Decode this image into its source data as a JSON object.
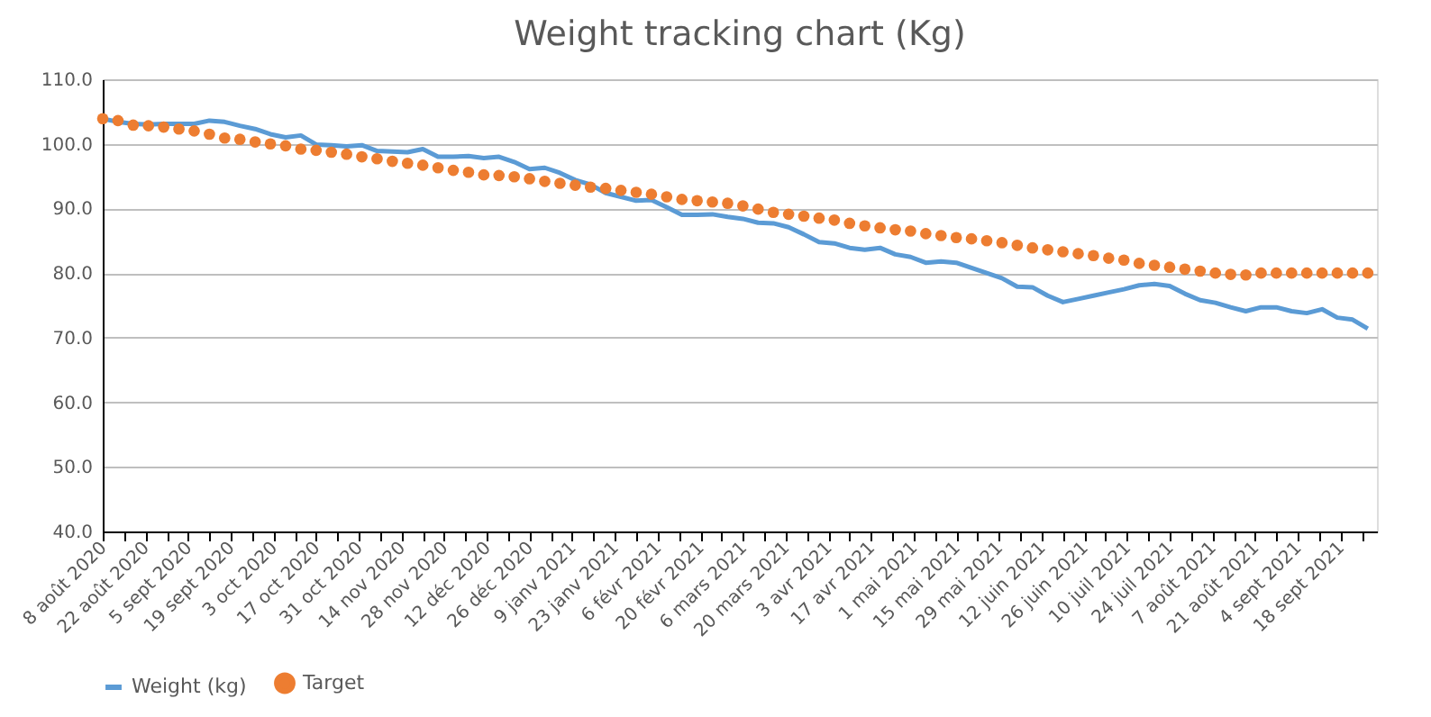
{
  "chart_data": {
    "type": "line",
    "title": "Weight tracking chart (Kg)",
    "x": [
      "2020-08-08",
      "2020-08-13",
      "2020-08-18",
      "2020-08-23",
      "2020-08-28",
      "2020-09-02",
      "2020-09-07",
      "2020-09-12",
      "2020-09-17",
      "2020-09-22",
      "2020-09-27",
      "2020-10-02",
      "2020-10-07",
      "2020-10-12",
      "2020-10-17",
      "2020-10-22",
      "2020-10-27",
      "2020-11-01",
      "2020-11-06",
      "2020-11-11",
      "2020-11-16",
      "2020-11-21",
      "2020-11-26",
      "2020-12-01",
      "2020-12-06",
      "2020-12-11",
      "2020-12-16",
      "2020-12-21",
      "2020-12-26",
      "2020-12-31",
      "2021-01-05",
      "2021-01-10",
      "2021-01-15",
      "2021-01-20",
      "2021-01-25",
      "2021-01-30",
      "2021-02-04",
      "2021-02-09",
      "2021-02-14",
      "2021-02-19",
      "2021-02-24",
      "2021-03-01",
      "2021-03-06",
      "2021-03-11",
      "2021-03-16",
      "2021-03-21",
      "2021-03-26",
      "2021-03-31",
      "2021-04-05",
      "2021-04-10",
      "2021-04-15",
      "2021-04-20",
      "2021-04-25",
      "2021-04-30",
      "2021-05-05",
      "2021-05-10",
      "2021-05-15",
      "2021-05-20",
      "2021-05-25",
      "2021-05-30",
      "2021-06-04",
      "2021-06-09",
      "2021-06-14",
      "2021-06-19",
      "2021-06-24",
      "2021-06-29",
      "2021-07-04",
      "2021-07-09",
      "2021-07-14",
      "2021-07-19",
      "2021-07-24",
      "2021-07-29",
      "2021-08-03",
      "2021-08-08",
      "2021-08-13",
      "2021-08-18",
      "2021-08-23",
      "2021-08-28",
      "2021-09-02",
      "2021-09-07",
      "2021-09-12",
      "2021-09-17",
      "2021-09-22",
      "2021-09-27"
    ],
    "series": [
      {
        "name": "Weight (kg)",
        "type": "line",
        "color": "#5b9bd5",
        "values": [
          103.9,
          103.4,
          103.1,
          103.0,
          103.1,
          103.1,
          103.1,
          103.6,
          103.4,
          102.8,
          102.3,
          101.5,
          101.0,
          101.3,
          99.9,
          99.8,
          99.6,
          99.8,
          98.9,
          98.8,
          98.7,
          99.2,
          98.0,
          98.0,
          98.1,
          97.8,
          98.0,
          97.2,
          96.1,
          96.3,
          95.5,
          94.4,
          93.7,
          92.4,
          91.8,
          91.2,
          91.3,
          90.2,
          89.0,
          89.0,
          89.1,
          88.7,
          88.4,
          87.8,
          87.7,
          87.1,
          86.0,
          84.8,
          84.6,
          83.9,
          83.6,
          83.9,
          82.9,
          82.5,
          81.6,
          81.8,
          81.6,
          80.8,
          80.0,
          79.2,
          77.9,
          77.8,
          76.5,
          75.5,
          76.0,
          76.5,
          77.0,
          77.5,
          78.1,
          78.3,
          78.0,
          76.8,
          75.8,
          75.4,
          74.7,
          74.1,
          74.7,
          74.7,
          74.1,
          73.8,
          74.4,
          73.1,
          72.8,
          71.4
        ]
      },
      {
        "name": "Target",
        "type": "scatter",
        "marker": "circle",
        "color": "#ed7d31",
        "values": [
          103.9,
          103.6,
          102.9,
          102.8,
          102.6,
          102.3,
          102.0,
          101.5,
          100.9,
          100.7,
          100.3,
          100.0,
          99.7,
          99.2,
          99.0,
          98.7,
          98.4,
          98.0,
          97.7,
          97.3,
          97.0,
          96.7,
          96.3,
          95.9,
          95.6,
          95.2,
          95.1,
          94.9,
          94.6,
          94.2,
          93.9,
          93.6,
          93.3,
          93.1,
          92.8,
          92.5,
          92.2,
          91.8,
          91.4,
          91.2,
          91.0,
          90.8,
          90.4,
          89.9,
          89.4,
          89.1,
          88.8,
          88.5,
          88.2,
          87.7,
          87.3,
          87.0,
          86.7,
          86.5,
          86.1,
          85.8,
          85.5,
          85.3,
          85.0,
          84.7,
          84.3,
          83.9,
          83.6,
          83.3,
          83.0,
          82.7,
          82.3,
          82.0,
          81.5,
          81.2,
          80.9,
          80.6,
          80.3,
          80.0,
          79.8,
          79.7,
          80.0,
          80.0,
          80.0,
          80.0,
          80.0,
          80.0,
          80.0,
          80.0
        ]
      }
    ],
    "xlim": [
      "2020-08-08",
      "2021-09-30"
    ],
    "xticks": [
      {
        "value": "2020-08-08",
        "label": "8 août 2020"
      },
      {
        "value": "2020-08-15",
        "label": null
      },
      {
        "value": "2020-08-22",
        "label": "22 août 2020"
      },
      {
        "value": "2020-08-29",
        "label": null
      },
      {
        "value": "2020-09-05",
        "label": "5 sept 2020"
      },
      {
        "value": "2020-09-12",
        "label": null
      },
      {
        "value": "2020-09-19",
        "label": "19 sept 2020"
      },
      {
        "value": "2020-09-26",
        "label": null
      },
      {
        "value": "2020-10-03",
        "label": "3 oct 2020"
      },
      {
        "value": "2020-10-10",
        "label": null
      },
      {
        "value": "2020-10-17",
        "label": "17 oct 2020"
      },
      {
        "value": "2020-10-24",
        "label": null
      },
      {
        "value": "2020-10-31",
        "label": "31 oct 2020"
      },
      {
        "value": "2020-11-07",
        "label": null
      },
      {
        "value": "2020-11-14",
        "label": "14 nov 2020"
      },
      {
        "value": "2020-11-21",
        "label": null
      },
      {
        "value": "2020-11-28",
        "label": "28 nov 2020"
      },
      {
        "value": "2020-12-05",
        "label": null
      },
      {
        "value": "2020-12-12",
        "label": "12 déc 2020"
      },
      {
        "value": "2020-12-19",
        "label": null
      },
      {
        "value": "2020-12-26",
        "label": "26 déc 2020"
      },
      {
        "value": "2021-01-02",
        "label": null
      },
      {
        "value": "2021-01-09",
        "label": "9 janv 2021"
      },
      {
        "value": "2021-01-16",
        "label": null
      },
      {
        "value": "2021-01-23",
        "label": "23 janv 2021"
      },
      {
        "value": "2021-01-30",
        "label": null
      },
      {
        "value": "2021-02-06",
        "label": "6 févr 2021"
      },
      {
        "value": "2021-02-13",
        "label": null
      },
      {
        "value": "2021-02-20",
        "label": "20 févr 2021"
      },
      {
        "value": "2021-02-27",
        "label": null
      },
      {
        "value": "2021-03-06",
        "label": "6 mars 2021"
      },
      {
        "value": "2021-03-13",
        "label": null
      },
      {
        "value": "2021-03-20",
        "label": "20 mars 2021"
      },
      {
        "value": "2021-03-27",
        "label": null
      },
      {
        "value": "2021-04-03",
        "label": "3 avr 2021"
      },
      {
        "value": "2021-04-10",
        "label": null
      },
      {
        "value": "2021-04-17",
        "label": "17 avr 2021"
      },
      {
        "value": "2021-04-24",
        "label": null
      },
      {
        "value": "2021-05-01",
        "label": "1 mai 2021"
      },
      {
        "value": "2021-05-08",
        "label": null
      },
      {
        "value": "2021-05-15",
        "label": "15 mai 2021"
      },
      {
        "value": "2021-05-22",
        "label": null
      },
      {
        "value": "2021-05-29",
        "label": "29 mai 2021"
      },
      {
        "value": "2021-06-05",
        "label": null
      },
      {
        "value": "2021-06-12",
        "label": "12 juin 2021"
      },
      {
        "value": "2021-06-19",
        "label": null
      },
      {
        "value": "2021-06-26",
        "label": "26 juin 2021"
      },
      {
        "value": "2021-07-03",
        "label": null
      },
      {
        "value": "2021-07-10",
        "label": "10 juil 2021"
      },
      {
        "value": "2021-07-17",
        "label": null
      },
      {
        "value": "2021-07-24",
        "label": "24 juil 2021"
      },
      {
        "value": "2021-07-31",
        "label": null
      },
      {
        "value": "2021-08-07",
        "label": "7 août 2021"
      },
      {
        "value": "2021-08-14",
        "label": null
      },
      {
        "value": "2021-08-21",
        "label": "21 août 2021"
      },
      {
        "value": "2021-08-28",
        "label": null
      },
      {
        "value": "2021-09-04",
        "label": "4 sept 2021"
      },
      {
        "value": "2021-09-11",
        "label": null
      },
      {
        "value": "2021-09-18",
        "label": "18 sept 2021"
      },
      {
        "value": "2021-09-25",
        "label": null
      }
    ],
    "ylim": [
      40,
      110
    ],
    "yticks": [
      {
        "value": 40,
        "label": "40.0"
      },
      {
        "value": 50,
        "label": "50.0"
      },
      {
        "value": 60,
        "label": "60.0"
      },
      {
        "value": 70,
        "label": "70.0"
      },
      {
        "value": 80,
        "label": "80.0"
      },
      {
        "value": 90,
        "label": "90.0"
      },
      {
        "value": 100,
        "label": "100.0"
      },
      {
        "value": 110,
        "label": "110.0"
      }
    ],
    "grid": "y",
    "legend": "bottom",
    "line_style": "solid"
  }
}
